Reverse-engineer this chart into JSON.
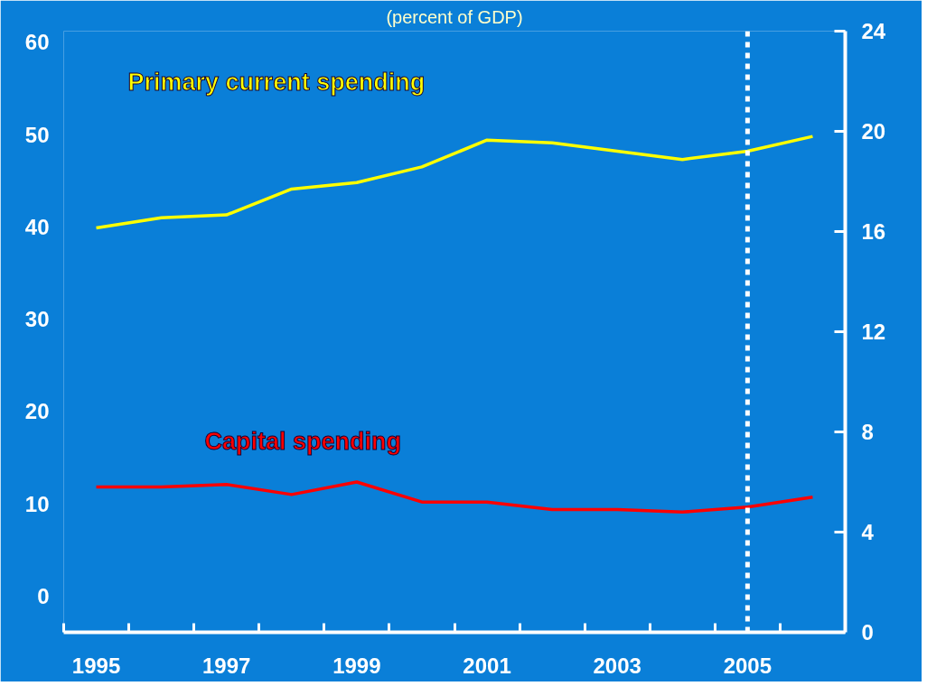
{
  "chart_data": {
    "type": "line",
    "title": "(percent of GDP)",
    "x": [
      1995,
      1996,
      1997,
      1998,
      1999,
      2000,
      2001,
      2002,
      2003,
      2004,
      2005,
      2006
    ],
    "series": [
      {
        "name": "Primary current spending",
        "color": "#ffff00",
        "values": [
          39.9,
          41.0,
          41.3,
          44.1,
          44.8,
          46.5,
          49.4,
          49.1,
          48.2,
          47.3,
          48.2,
          49.8
        ]
      },
      {
        "name": "Capital spending",
        "color": "#ff0000",
        "axis": "y2",
        "values": [
          5.8,
          5.8,
          5.9,
          5.5,
          6.0,
          5.2,
          5.2,
          4.9,
          4.9,
          4.8,
          5.0,
          5.4
        ]
      }
    ],
    "xlim": [
      1994.5,
      2006.5
    ],
    "xticks": [
      {
        "value": 1994.5,
        "label": null
      },
      1995,
      {
        "value": 1995.5,
        "label": null
      },
      {
        "value": 1996.5,
        "label": null
      },
      1997,
      {
        "value": 1997.5,
        "label": null
      },
      {
        "value": 1998.5,
        "label": null
      },
      1999,
      {
        "value": 1999.5,
        "label": null
      },
      {
        "value": 2000.5,
        "label": null
      },
      2001,
      {
        "value": 2001.5,
        "label": null
      },
      {
        "value": 2002.5,
        "label": null
      },
      2003,
      {
        "value": 2003.5,
        "label": null
      },
      {
        "value": 2004.5,
        "label": null
      },
      2005,
      {
        "value": 2005.5,
        "label": null
      }
    ],
    "ylim": [
      -3.9,
      61.2
    ],
    "yticks": [
      0,
      10,
      20,
      30,
      40,
      50,
      60
    ],
    "y2lim": [
      0,
      24
    ],
    "y2ticks": [
      0,
      4,
      8,
      12,
      16,
      20,
      24
    ],
    "ref_lines": [
      {
        "axis": "x",
        "value": 2005,
        "color": "#ffffff",
        "line_style": "dashed"
      }
    ],
    "grid": false,
    "marker": "none",
    "line_style": "solid"
  }
}
